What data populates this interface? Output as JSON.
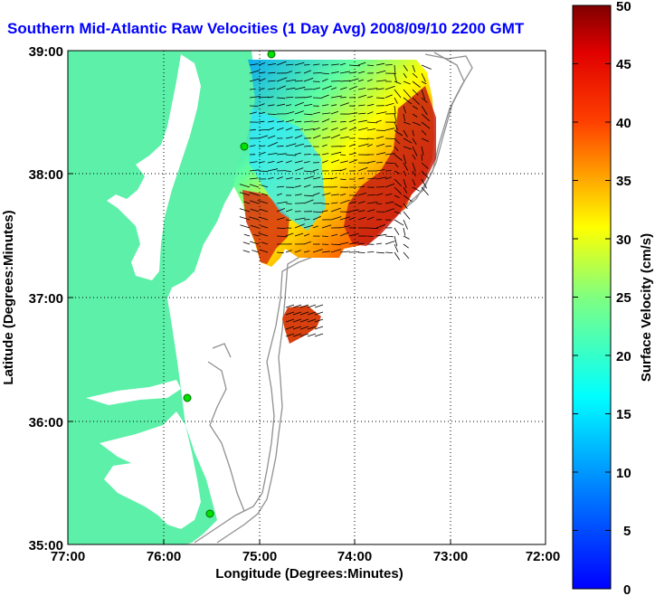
{
  "map": {
    "title": "Southern Mid-Atlantic Raw Velocities (1 Day Avg) 2008/09/10 2200 GMT",
    "xlabel": "Longitude (Degrees:Minutes)",
    "ylabel": "Latitude (Degrees:Minutes)",
    "x_ticks": [
      "77:00",
      "76:00",
      "75:00",
      "74:00",
      "73:00",
      "72:00"
    ],
    "y_ticks": [
      "39:00",
      "38:00",
      "37:00",
      "36:00",
      "35:00"
    ],
    "land_color": "#5cf0a8",
    "grid": "dotted"
  },
  "colorbar": {
    "label": "Surface Velocity (cm/s)",
    "ticks": [
      "50",
      "45",
      "40",
      "35",
      "30",
      "25",
      "20",
      "15",
      "10",
      "5",
      "0"
    ],
    "range": [
      0,
      50
    ],
    "colormap": "jet"
  },
  "chart_data": {
    "type": "heatmap",
    "title": "Southern Mid-Atlantic Raw Velocities (1 Day Avg) 2008/09/10 2200 GMT",
    "xlabel": "Longitude (Degrees:Minutes)",
    "ylabel": "Latitude (Degrees:Minutes)",
    "xlim": [
      "77:00",
      "72:00"
    ],
    "ylim": [
      "35:00",
      "39:00"
    ],
    "colorbar_label": "Surface Velocity (cm/s)",
    "colorbar_range": [
      0,
      50
    ]
  }
}
